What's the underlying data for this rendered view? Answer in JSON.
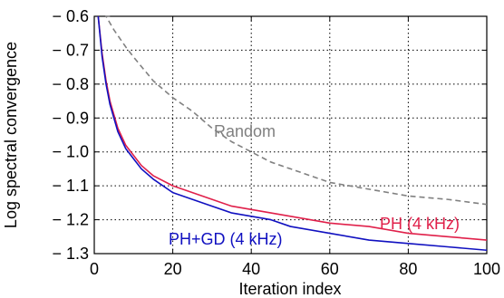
{
  "chart_data": {
    "type": "line",
    "title": "",
    "xlabel": "Iteration index",
    "ylabel": "Log spectral convergence",
    "xlim": [
      0,
      100
    ],
    "ylim": [
      -1.3,
      -0.6
    ],
    "xticks": [
      0,
      20,
      40,
      60,
      80,
      100
    ],
    "xtick_labels": [
      "0",
      "20",
      "40",
      "60",
      "80",
      "100"
    ],
    "yticks": [
      -0.6,
      -0.7,
      -0.8,
      -0.9,
      -1.0,
      -1.1,
      -1.2,
      -1.3
    ],
    "ytick_labels": [
      "− 0.6",
      "− 0.7",
      "− 0.8",
      "− 0.9",
      "− 1.0",
      "− 1.1",
      "− 1.2",
      "− 1.3"
    ],
    "grid": true,
    "x": [
      1,
      2,
      3,
      4,
      5,
      6,
      8,
      10,
      12,
      15,
      20,
      25,
      30,
      35,
      40,
      45,
      50,
      60,
      70,
      80,
      90,
      100
    ],
    "series": [
      {
        "name": "Random",
        "color": "#808080",
        "style": "dashed",
        "x": [
          1,
          2,
          3,
          5,
          8,
          10,
          15,
          20,
          25,
          30,
          35,
          40,
          45,
          50,
          60,
          70,
          80,
          90,
          100
        ],
        "values": [
          -0.57,
          -0.58,
          -0.6,
          -0.64,
          -0.69,
          -0.72,
          -0.79,
          -0.84,
          -0.88,
          -0.93,
          -0.97,
          -1.0,
          -1.03,
          -1.05,
          -1.09,
          -1.11,
          -1.13,
          -1.14,
          -1.155
        ]
      },
      {
        "name": "PH (4 kHz)",
        "color": "#e0204a",
        "style": "solid",
        "values": [
          -0.6,
          -0.71,
          -0.79,
          -0.85,
          -0.89,
          -0.93,
          -0.98,
          -1.01,
          -1.04,
          -1.07,
          -1.1,
          -1.12,
          -1.14,
          -1.16,
          -1.17,
          -1.18,
          -1.19,
          -1.21,
          -1.22,
          -1.24,
          -1.25,
          -1.26
        ]
      },
      {
        "name": "PH+GD (4 kHz)",
        "color": "#1010c0",
        "style": "solid",
        "values": [
          -0.6,
          -0.72,
          -0.8,
          -0.86,
          -0.9,
          -0.94,
          -0.99,
          -1.02,
          -1.05,
          -1.08,
          -1.12,
          -1.14,
          -1.16,
          -1.18,
          -1.19,
          -1.2,
          -1.22,
          -1.24,
          -1.26,
          -1.27,
          -1.28,
          -1.29
        ]
      }
    ]
  }
}
